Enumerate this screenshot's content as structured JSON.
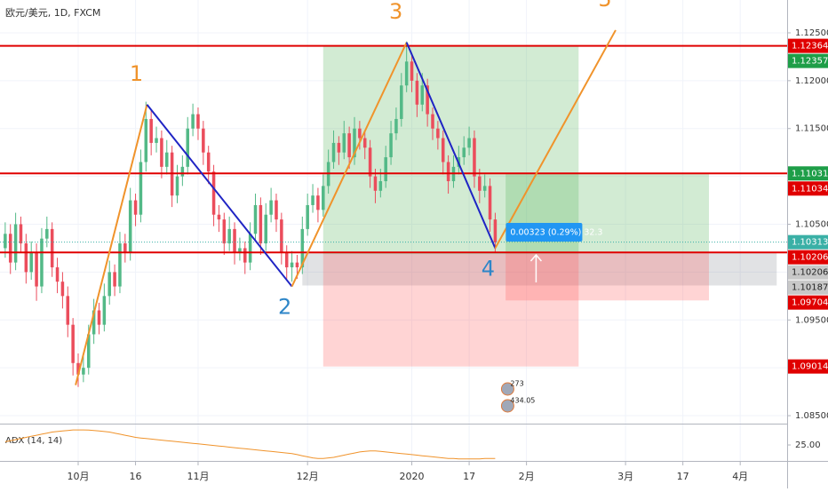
{
  "chart_data": {
    "type": "candlestick",
    "title": "欧元/美元, 1D, FXCM",
    "up_color": "#53b987",
    "down_color": "#eb4d5c",
    "xlim": [
      -1,
      150
    ],
    "xticks": [
      {
        "value": 14,
        "label": "10月"
      },
      {
        "value": 25,
        "label": "16"
      },
      {
        "value": 37,
        "label": "11月"
      },
      {
        "value": 58,
        "label": "12月"
      },
      {
        "value": 78,
        "label": "2020"
      },
      {
        "value": 89,
        "label": "17"
      },
      {
        "value": 100,
        "label": "2月"
      },
      {
        "value": 119,
        "label": "3月"
      },
      {
        "value": 130,
        "label": "17"
      },
      {
        "value": 141,
        "label": "4月"
      }
    ],
    "ylim": [
      1.08417,
      1.12843
    ],
    "yticks": [
      {
        "value": 1.125,
        "label": "1.12500"
      },
      {
        "value": 1.12,
        "label": "1.12000"
      },
      {
        "value": 1.115,
        "label": "1.11500"
      },
      {
        "value": 1.11,
        "label": "1.11000"
      },
      {
        "value": 1.105,
        "label": "1.10500"
      },
      {
        "value": 1.1,
        "label": "1.10000"
      },
      {
        "value": 1.095,
        "label": "1.09500"
      },
      {
        "value": 1.09,
        "label": "1.09000"
      },
      {
        "value": 1.085,
        "label": "1.08500"
      }
    ],
    "grid": true,
    "candles": [
      [
        1.1025,
        1.1052,
        1.1015,
        1.104
      ],
      [
        1.104,
        1.105,
        1.0998,
        1.101
      ],
      [
        1.101,
        1.1062,
        1.1002,
        1.105
      ],
      [
        1.105,
        1.1058,
        1.102,
        1.103
      ],
      [
        1.103,
        1.104,
        1.0988,
        1.1
      ],
      [
        1.1,
        1.1032,
        1.0992,
        1.102
      ],
      [
        1.102,
        1.103,
        1.097,
        1.0985
      ],
      [
        1.0985,
        1.1046,
        1.0978,
        1.1035
      ],
      [
        1.1035,
        1.1058,
        1.1026,
        1.1045
      ],
      [
        1.1045,
        1.1052,
        1.0995,
        1.1005
      ],
      [
        1.1005,
        1.1015,
        1.0978,
        1.099
      ],
      [
        1.099,
        1.1,
        1.0962,
        1.0975
      ],
      [
        1.0975,
        1.0985,
        1.0932,
        1.0945
      ],
      [
        1.0945,
        1.0952,
        1.0892,
        1.0905
      ],
      [
        1.0905,
        1.0915,
        1.088,
        1.0893
      ],
      [
        1.0893,
        1.0912,
        1.0885,
        1.09
      ],
      [
        1.09,
        1.0945,
        1.0893,
        1.0935
      ],
      [
        1.0935,
        1.0972,
        1.0925,
        1.096
      ],
      [
        1.096,
        1.0968,
        1.0935,
        1.0945
      ],
      [
        1.0945,
        1.0988,
        1.0938,
        1.0975
      ],
      [
        1.0975,
        1.1012,
        1.0966,
        1.1
      ],
      [
        1.1,
        1.1008,
        1.0975,
        1.0985
      ],
      [
        1.0985,
        1.1042,
        1.0978,
        1.103
      ],
      [
        1.103,
        1.104,
        1.101,
        1.102
      ],
      [
        1.102,
        1.1088,
        1.1012,
        1.1075
      ],
      [
        1.1075,
        1.1082,
        1.1048,
        1.106
      ],
      [
        1.106,
        1.1128,
        1.1052,
        1.1115
      ],
      [
        1.1115,
        1.1178,
        1.1105,
        1.116
      ],
      [
        1.116,
        1.117,
        1.1122,
        1.1135
      ],
      [
        1.1135,
        1.1152,
        1.1125,
        1.114
      ],
      [
        1.114,
        1.1148,
        1.1098,
        1.111
      ],
      [
        1.111,
        1.1138,
        1.1102,
        1.1125
      ],
      [
        1.1125,
        1.1132,
        1.1068,
        1.108
      ],
      [
        1.108,
        1.1112,
        1.1072,
        1.11
      ],
      [
        1.11,
        1.1122,
        1.109,
        1.111
      ],
      [
        1.111,
        1.1162,
        1.1102,
        1.115
      ],
      [
        1.115,
        1.1176,
        1.1142,
        1.1165
      ],
      [
        1.1165,
        1.1172,
        1.1138,
        1.115
      ],
      [
        1.115,
        1.1158,
        1.1112,
        1.1125
      ],
      [
        1.1125,
        1.1132,
        1.1092,
        1.1105
      ],
      [
        1.1105,
        1.1112,
        1.1048,
        1.106
      ],
      [
        1.106,
        1.107,
        1.1042,
        1.1055
      ],
      [
        1.1055,
        1.1062,
        1.1018,
        1.103
      ],
      [
        1.103,
        1.1058,
        1.1022,
        1.1045
      ],
      [
        1.1045,
        1.1052,
        1.1008,
        1.102
      ],
      [
        1.102,
        1.1036,
        1.1012,
        1.1025
      ],
      [
        1.1025,
        1.1032,
        1.0998,
        1.101
      ],
      [
        1.101,
        1.1052,
        1.1002,
        1.104
      ],
      [
        1.104,
        1.1082,
        1.1032,
        1.107
      ],
      [
        1.107,
        1.1078,
        1.1018,
        1.103
      ],
      [
        1.103,
        1.1072,
        1.1022,
        1.106
      ],
      [
        1.106,
        1.1088,
        1.1052,
        1.1075
      ],
      [
        1.1075,
        1.1082,
        1.1042,
        1.1055
      ],
      [
        1.1055,
        1.1062,
        1.1008,
        1.102
      ],
      [
        1.102,
        1.1028,
        1.0993,
        1.1005
      ],
      [
        1.1005,
        1.1022,
        1.099,
        1.101
      ],
      [
        1.101,
        1.1018,
        1.0993,
        1.1005
      ],
      [
        1.1005,
        1.1058,
        1.0998,
        1.1045
      ],
      [
        1.1045,
        1.1082,
        1.1038,
        1.107
      ],
      [
        1.107,
        1.1092,
        1.1062,
        1.108
      ],
      [
        1.108,
        1.1088,
        1.1052,
        1.1065
      ],
      [
        1.1065,
        1.1102,
        1.1058,
        1.109
      ],
      [
        1.109,
        1.1128,
        1.1082,
        1.1115
      ],
      [
        1.1115,
        1.1148,
        1.1108,
        1.1135
      ],
      [
        1.1135,
        1.1142,
        1.1112,
        1.1125
      ],
      [
        1.1125,
        1.1158,
        1.1118,
        1.1145
      ],
      [
        1.1145,
        1.1152,
        1.1108,
        1.112
      ],
      [
        1.112,
        1.1162,
        1.1112,
        1.115
      ],
      [
        1.115,
        1.1158,
        1.1128,
        1.114
      ],
      [
        1.114,
        1.1148,
        1.1118,
        1.113
      ],
      [
        1.113,
        1.1138,
        1.1088,
        1.11
      ],
      [
        1.11,
        1.1108,
        1.1072,
        1.1085
      ],
      [
        1.1085,
        1.1108,
        1.1078,
        1.1095
      ],
      [
        1.1095,
        1.1132,
        1.1088,
        1.112
      ],
      [
        1.112,
        1.1158,
        1.1112,
        1.1145
      ],
      [
        1.1145,
        1.1172,
        1.1138,
        1.116
      ],
      [
        1.116,
        1.1208,
        1.1152,
        1.1195
      ],
      [
        1.1195,
        1.1241,
        1.1188,
        1.122
      ],
      [
        1.122,
        1.1228,
        1.1188,
        1.12
      ],
      [
        1.12,
        1.1208,
        1.1162,
        1.1175
      ],
      [
        1.1175,
        1.1208,
        1.1168,
        1.1195
      ],
      [
        1.1195,
        1.1202,
        1.1152,
        1.1165
      ],
      [
        1.1165,
        1.1172,
        1.1138,
        1.115
      ],
      [
        1.115,
        1.1158,
        1.1128,
        1.114
      ],
      [
        1.114,
        1.1148,
        1.1102,
        1.1115
      ],
      [
        1.1115,
        1.1122,
        1.1082,
        1.1095
      ],
      [
        1.1095,
        1.1122,
        1.1088,
        1.111
      ],
      [
        1.111,
        1.1132,
        1.1102,
        1.112
      ],
      [
        1.112,
        1.1142,
        1.1112,
        1.113
      ],
      [
        1.113,
        1.1152,
        1.1122,
        1.114
      ],
      [
        1.114,
        1.1148,
        1.1088,
        1.11
      ],
      [
        1.11,
        1.1108,
        1.1072,
        1.1085
      ],
      [
        1.1085,
        1.1102,
        1.1078,
        1.109
      ],
      [
        1.109,
        1.1098,
        1.1042,
        1.1055
      ],
      [
        1.1055,
        1.1062,
        1.102,
        1.1031
      ]
    ],
    "current_price": 1.10313,
    "hlines": [
      1.12364,
      1.11031,
      1.10206
    ],
    "hline_color": "#e00000",
    "positions": [
      {
        "x": [
          61,
          110
        ],
        "target": 1.12357,
        "entry": 1.10187,
        "stop": 1.09014
      },
      {
        "x": [
          96,
          135
        ],
        "target": 1.11034,
        "entry": 1.10206,
        "stop": 1.09704
      }
    ],
    "range_box": {
      "x": [
        57,
        148
      ],
      "top": 1.10206,
      "bottom": 1.0986
    },
    "waves": [
      {
        "x": 13.5,
        "y": 1.0882
      },
      {
        "x": 27.2,
        "y": 1.1175,
        "label": "1"
      },
      {
        "x": 55.0,
        "y": 1.0985,
        "label": "2"
      },
      {
        "x": 77.0,
        "y": 1.124,
        "label": "3"
      },
      {
        "x": 94.0,
        "y": 1.1025,
        "label": "4"
      },
      {
        "x": 117.1,
        "y": 1.12528,
        "label": "5"
      }
    ],
    "wave_up_color": "#f0932b",
    "wave_down_color": "#1f24c4",
    "wave_down_label_color": "#2e86c8",
    "measure_label": "0.00323 (0.29%) 32.3",
    "price_labels": [
      {
        "value": 1.12364,
        "color": "#e00000"
      },
      {
        "value": 1.12357,
        "color": "#1e9e48"
      },
      {
        "value": 1.11031,
        "color": "#1e9e48"
      },
      {
        "value": 1.11034,
        "color": "#e00000"
      },
      {
        "value": 1.10313,
        "color": "#3ab0a6"
      },
      {
        "value": 1.10206,
        "color": "#e00000"
      },
      {
        "value": 1.10206,
        "color": "#c8c8c8"
      },
      {
        "value": 1.10187,
        "color": "#c8c8c8"
      },
      {
        "value": 1.09704,
        "color": "#e00000"
      },
      {
        "value": 1.09014,
        "color": "#e00000"
      }
    ],
    "event_badges": [
      "273",
      "434.05"
    ],
    "indicator": {
      "name": "ADX (14, 14)",
      "color": "#f0932b",
      "ylim": [
        11,
        44
      ],
      "yticks": [
        {
          "value": 25,
          "label": "25.00"
        }
      ],
      "values": [
        28,
        29,
        30,
        31,
        32,
        33,
        34,
        35,
        36,
        37,
        37.5,
        38,
        38.5,
        39,
        39,
        39,
        38.8,
        38.5,
        38,
        37.5,
        37,
        36,
        35,
        34,
        33,
        32,
        31.5,
        31,
        30.5,
        30,
        29.5,
        29,
        28.5,
        28,
        27.5,
        27,
        26.5,
        26,
        25.5,
        25,
        24.5,
        24,
        23.5,
        23,
        22.5,
        22,
        21.5,
        21,
        20.5,
        20,
        19.5,
        19,
        18.5,
        18,
        17.5,
        17,
        16,
        15,
        14,
        13,
        12.5,
        12.5,
        13,
        13.5,
        14.5,
        15.5,
        16.5,
        17.5,
        18.5,
        19,
        19.5,
        19.5,
        19,
        18.5,
        18,
        17.5,
        17,
        16.5,
        16,
        15.5,
        15,
        14.5,
        14,
        13.5,
        13,
        12.5,
        12.5,
        12,
        12,
        12,
        12,
        12,
        12.5,
        12.5,
        12.5
      ]
    }
  }
}
